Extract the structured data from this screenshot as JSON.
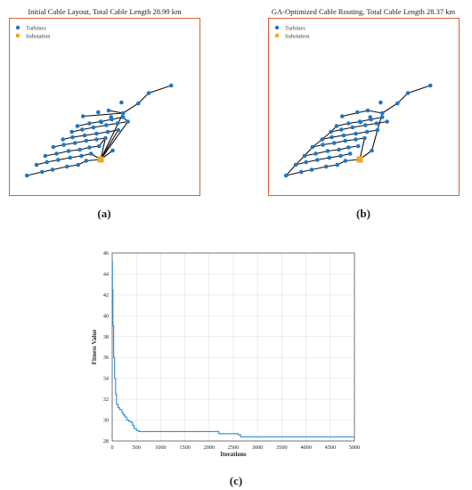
{
  "panels": [
    {
      "label": "(a)",
      "title": "Initial Cable Layout, Total Cable Length 28.99 km"
    },
    {
      "label": "(b)",
      "title": "GA-Optimized Cable Routing, Total Cable Length 28.37 km"
    },
    {
      "label": "(c)"
    }
  ],
  "legend": {
    "turbines": "Turbines",
    "substation": "Substation"
  },
  "colors": {
    "turbine": "#1f77c4",
    "substation": "#f5a623",
    "cable": "#111111",
    "frame": "#d9603b",
    "line": "#2a8fd0"
  },
  "chart_data": [
    {
      "type": "scatter",
      "title": "Initial Cable Layout, Total Cable Length 28.99 km",
      "legend": [
        "Turbines",
        "Substation"
      ],
      "legend_position": "top-left",
      "axes_visible": false,
      "substation": [
        100,
        52
      ],
      "turbines": [
        [
          8,
          88
        ],
        [
          27,
          80
        ],
        [
          40,
          75
        ],
        [
          58,
          68
        ],
        [
          72,
          64
        ],
        [
          82,
          55
        ],
        [
          20,
          64
        ],
        [
          33,
          58
        ],
        [
          47,
          53
        ],
        [
          62,
          48
        ],
        [
          76,
          44
        ],
        [
          88,
          39
        ],
        [
          31,
          44
        ],
        [
          45,
          39
        ],
        [
          60,
          33
        ],
        [
          74,
          30
        ],
        [
          86,
          25
        ],
        [
          98,
          22
        ],
        [
          41,
          24
        ],
        [
          54,
          19
        ],
        [
          68,
          15
        ],
        [
          82,
          10
        ],
        [
          95,
          7
        ],
        [
          106,
          4
        ],
        [
          53,
          7
        ],
        [
          65,
          2
        ],
        [
          80,
          -2
        ],
        [
          95,
          -6
        ],
        [
          109,
          -10
        ],
        [
          122,
          -14
        ],
        [
          64,
          -10
        ],
        [
          77,
          -15
        ],
        [
          91,
          -20
        ],
        [
          107,
          -25
        ],
        [
          121,
          -29
        ],
        [
          134,
          -33
        ],
        [
          71,
          -23
        ],
        [
          86,
          -29
        ],
        [
          100,
          -33
        ],
        [
          114,
          -38
        ],
        [
          128,
          -43
        ],
        [
          115,
          32
        ],
        [
          128,
          -52
        ],
        [
          147,
          -74
        ],
        [
          160,
          -97
        ],
        [
          188,
          -114
        ],
        [
          110,
          -58
        ],
        [
          78,
          -45
        ],
        [
          101,
          -32
        ],
        [
          113,
          -43
        ],
        [
          97,
          -54
        ],
        [
          126,
          -76
        ]
      ],
      "cables": [
        [
          [
            8,
            88
          ],
          [
            27,
            80
          ],
          [
            40,
            75
          ],
          [
            58,
            68
          ],
          [
            72,
            64
          ],
          [
            82,
            55
          ],
          [
            100,
            52
          ]
        ],
        [
          [
            20,
            64
          ],
          [
            33,
            58
          ],
          [
            47,
            53
          ],
          [
            62,
            48
          ],
          [
            76,
            44
          ],
          [
            88,
            39
          ],
          [
            100,
            52
          ]
        ],
        [
          [
            31,
            44
          ],
          [
            45,
            39
          ],
          [
            60,
            33
          ],
          [
            74,
            30
          ],
          [
            86,
            25
          ],
          [
            98,
            22
          ],
          [
            106,
            4
          ]
        ],
        [
          [
            41,
            24
          ],
          [
            54,
            19
          ],
          [
            68,
            15
          ],
          [
            82,
            10
          ],
          [
            95,
            7
          ],
          [
            106,
            4
          ],
          [
            100,
            52
          ]
        ],
        [
          [
            53,
            7
          ],
          [
            65,
            2
          ],
          [
            80,
            -2
          ],
          [
            95,
            -6
          ],
          [
            109,
            -10
          ],
          [
            122,
            -14
          ],
          [
            100,
            52
          ]
        ],
        [
          [
            64,
            -10
          ],
          [
            77,
            -15
          ],
          [
            91,
            -20
          ],
          [
            107,
            -25
          ],
          [
            121,
            -29
          ],
          [
            134,
            -33
          ],
          [
            100,
            52
          ]
        ],
        [
          [
            71,
            -23
          ],
          [
            86,
            -29
          ],
          [
            100,
            -33
          ],
          [
            114,
            -38
          ],
          [
            128,
            -43
          ],
          [
            134,
            -33
          ]
        ],
        [
          [
            100,
            52
          ],
          [
            115,
            32
          ]
        ],
        [
          [
            100,
            52
          ],
          [
            128,
            -52
          ],
          [
            147,
            -74
          ],
          [
            160,
            -97
          ],
          [
            188,
            -114
          ]
        ],
        [
          [
            128,
            -52
          ],
          [
            110,
            -58
          ]
        ],
        [
          [
            128,
            -52
          ],
          [
            78,
            -45
          ]
        ]
      ]
    },
    {
      "type": "scatter",
      "title": "GA-Optimized Cable Routing, Total Cable Length 28.37 km",
      "legend": [
        "Turbines",
        "Substation"
      ],
      "legend_position": "top-left",
      "axes_visible": false,
      "substation": [
        100,
        52
      ],
      "turbines": [
        [
          8,
          88
        ],
        [
          27,
          80
        ],
        [
          40,
          75
        ],
        [
          58,
          68
        ],
        [
          72,
          64
        ],
        [
          82,
          55
        ],
        [
          20,
          64
        ],
        [
          33,
          58
        ],
        [
          47,
          53
        ],
        [
          62,
          48
        ],
        [
          76,
          44
        ],
        [
          88,
          39
        ],
        [
          31,
          44
        ],
        [
          45,
          39
        ],
        [
          60,
          33
        ],
        [
          74,
          30
        ],
        [
          86,
          25
        ],
        [
          98,
          22
        ],
        [
          41,
          24
        ],
        [
          54,
          19
        ],
        [
          68,
          15
        ],
        [
          82,
          10
        ],
        [
          95,
          7
        ],
        [
          106,
          4
        ],
        [
          53,
          7
        ],
        [
          65,
          2
        ],
        [
          80,
          -2
        ],
        [
          95,
          -6
        ],
        [
          109,
          -10
        ],
        [
          122,
          -14
        ],
        [
          64,
          -10
        ],
        [
          77,
          -15
        ],
        [
          91,
          -20
        ],
        [
          107,
          -25
        ],
        [
          121,
          -29
        ],
        [
          134,
          -33
        ],
        [
          71,
          -23
        ],
        [
          86,
          -29
        ],
        [
          100,
          -33
        ],
        [
          114,
          -38
        ],
        [
          128,
          -43
        ],
        [
          115,
          32
        ],
        [
          128,
          -52
        ],
        [
          147,
          -74
        ],
        [
          160,
          -97
        ],
        [
          188,
          -114
        ],
        [
          110,
          -58
        ],
        [
          78,
          -45
        ],
        [
          101,
          -32
        ],
        [
          113,
          -43
        ],
        [
          97,
          -54
        ],
        [
          126,
          -76
        ]
      ],
      "cables": [
        [
          [
            8,
            88
          ],
          [
            27,
            80
          ],
          [
            40,
            75
          ],
          [
            58,
            68
          ],
          [
            72,
            64
          ],
          [
            82,
            55
          ],
          [
            100,
            52
          ]
        ],
        [
          [
            20,
            64
          ],
          [
            8,
            88
          ]
        ],
        [
          [
            20,
            64
          ],
          [
            33,
            58
          ],
          [
            47,
            53
          ],
          [
            62,
            48
          ],
          [
            76,
            44
          ],
          [
            88,
            39
          ]
        ],
        [
          [
            31,
            44
          ],
          [
            20,
            64
          ]
        ],
        [
          [
            31,
            44
          ],
          [
            45,
            39
          ],
          [
            60,
            33
          ],
          [
            74,
            30
          ],
          [
            86,
            25
          ],
          [
            98,
            22
          ]
        ],
        [
          [
            41,
            24
          ],
          [
            31,
            44
          ]
        ],
        [
          [
            41,
            24
          ],
          [
            54,
            19
          ],
          [
            68,
            15
          ],
          [
            82,
            10
          ],
          [
            95,
            7
          ],
          [
            106,
            4
          ],
          [
            100,
            52
          ]
        ],
        [
          [
            53,
            7
          ],
          [
            41,
            24
          ]
        ],
        [
          [
            53,
            7
          ],
          [
            65,
            2
          ],
          [
            80,
            -2
          ],
          [
            95,
            -6
          ],
          [
            109,
            -10
          ],
          [
            122,
            -14
          ]
        ],
        [
          [
            64,
            -10
          ],
          [
            53,
            7
          ]
        ],
        [
          [
            64,
            -10
          ],
          [
            77,
            -15
          ],
          [
            91,
            -20
          ],
          [
            107,
            -25
          ],
          [
            121,
            -29
          ],
          [
            134,
            -33
          ]
        ],
        [
          [
            71,
            -23
          ],
          [
            64,
            -10
          ]
        ],
        [
          [
            71,
            -23
          ],
          [
            86,
            -29
          ],
          [
            100,
            -33
          ],
          [
            114,
            -38
          ],
          [
            128,
            -43
          ]
        ],
        [
          [
            100,
            52
          ],
          [
            115,
            32
          ],
          [
            128,
            -52
          ],
          [
            147,
            -74
          ],
          [
            160,
            -97
          ],
          [
            188,
            -114
          ]
        ],
        [
          [
            128,
            -52
          ],
          [
            110,
            -58
          ],
          [
            78,
            -45
          ]
        ]
      ]
    },
    {
      "type": "line",
      "title": "",
      "xlabel": "Iterations",
      "ylabel": "Fitness Value",
      "xlim": [
        0,
        5000
      ],
      "ylim": [
        28,
        46
      ],
      "xticks": [
        0,
        500,
        1000,
        1500,
        2000,
        2500,
        3000,
        3500,
        4000,
        4500,
        5000
      ],
      "yticks": [
        28,
        30,
        32,
        34,
        36,
        38,
        40,
        42,
        44,
        46
      ],
      "grid": true,
      "series": [
        {
          "x": [
            0,
            5,
            15,
            30,
            50,
            70,
            90,
            120,
            150,
            200,
            230,
            260,
            300,
            340,
            380,
            420,
            450,
            500,
            550,
            1000,
            1500,
            2200,
            2300,
            2500,
            2600,
            2650,
            3000,
            3500,
            4000,
            4500,
            5000
          ],
          "y": [
            45.2,
            42.5,
            39.0,
            36.0,
            34.0,
            32.5,
            31.5,
            31.2,
            31.0,
            30.7,
            30.5,
            30.3,
            30.0,
            29.9,
            29.8,
            29.5,
            29.2,
            29.0,
            28.9,
            28.9,
            28.9,
            28.7,
            28.7,
            28.7,
            28.6,
            28.4,
            28.4,
            28.4,
            28.4,
            28.4,
            28.4
          ]
        }
      ]
    }
  ]
}
